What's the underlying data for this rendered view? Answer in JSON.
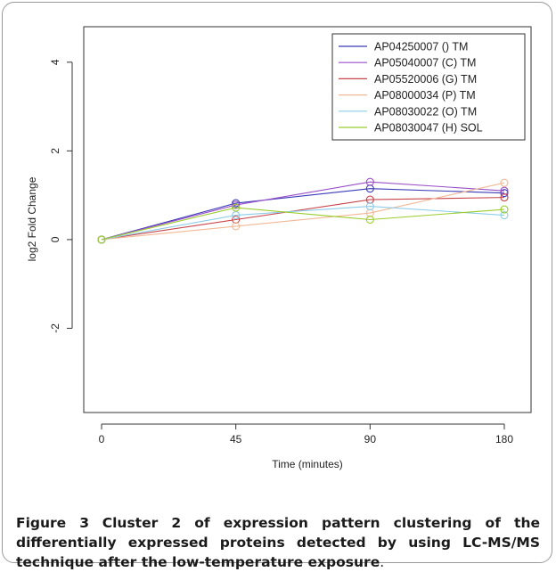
{
  "chart_data": {
    "type": "line",
    "title": "",
    "xlabel": "Time (minutes)",
    "ylabel": "log2 Fold Change",
    "categories": [
      "0",
      "45",
      "90",
      "180"
    ],
    "ylim": [
      -3.9,
      4.8
    ],
    "yticks": [
      -2,
      0,
      2,
      4
    ],
    "ytick_labels": [
      "-2",
      "0",
      "2",
      "4"
    ],
    "grid": false,
    "legend_position": "top-right",
    "series": [
      {
        "name": "AP04250007 () TM",
        "color": "#3a3ab8",
        "values": [
          0,
          0.82,
          1.15,
          1.05
        ]
      },
      {
        "name": "AP05040007 (C) TM",
        "color": "#9a4fc8",
        "values": [
          0,
          0.78,
          1.3,
          1.1
        ]
      },
      {
        "name": "AP05520006 (G) TM",
        "color": "#c8454a",
        "values": [
          0,
          0.45,
          0.9,
          0.95
        ]
      },
      {
        "name": "AP08000034 (P) TM",
        "color": "#f2b896",
        "values": [
          0,
          0.3,
          0.6,
          1.28
        ]
      },
      {
        "name": "AP08030022 (O) TM",
        "color": "#8ccde8",
        "values": [
          0,
          0.55,
          0.75,
          0.55
        ]
      },
      {
        "name": "AP08030047 (H) SOL",
        "color": "#9acd2c",
        "values": [
          0,
          0.72,
          0.45,
          0.68
        ]
      }
    ]
  },
  "caption": {
    "label": "Figure 3",
    "text": "Cluster 2 of expression pattern clustering of the differentially expressed proteins detected by using LC-MS/MS technique after the low-temperature exposure",
    "end": "."
  }
}
